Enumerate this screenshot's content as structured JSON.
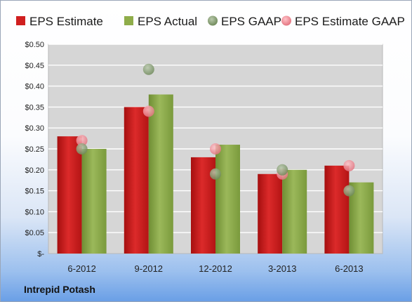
{
  "company_label": "Intrepid Potash",
  "colors": {
    "estimate": "#cc1d1d",
    "actual": "#8caa48",
    "gaap": "#7f9a6a",
    "estimate_gaap": "#ee8c95",
    "plot_bg": "#d6d6d6",
    "grid": "#ffffff"
  },
  "chart_data": {
    "type": "bar",
    "categories": [
      "6-2012",
      "9-2012",
      "12-2012",
      "3-2013",
      "6-2013"
    ],
    "series": [
      {
        "name": "EPS Estimate",
        "kind": "bar",
        "values": [
          0.28,
          0.35,
          0.23,
          0.19,
          0.21
        ]
      },
      {
        "name": "EPS Actual",
        "kind": "bar",
        "values": [
          0.25,
          0.38,
          0.26,
          0.2,
          0.17
        ]
      },
      {
        "name": "EPS GAAP",
        "kind": "scatter",
        "values": [
          0.25,
          0.44,
          0.19,
          0.2,
          0.15
        ]
      },
      {
        "name": "EPS Estimate GAAP",
        "kind": "scatter",
        "values": [
          0.27,
          0.34,
          0.25,
          0.19,
          0.21
        ]
      }
    ],
    "y_ticks": [
      "$-",
      "$0.05",
      "$0.10",
      "$0.15",
      "$0.20",
      "$0.25",
      "$0.30",
      "$0.35",
      "$0.40",
      "$0.45",
      "$0.50"
    ],
    "ylim": [
      0,
      0.5
    ],
    "grid": true,
    "legend_position": "top"
  }
}
